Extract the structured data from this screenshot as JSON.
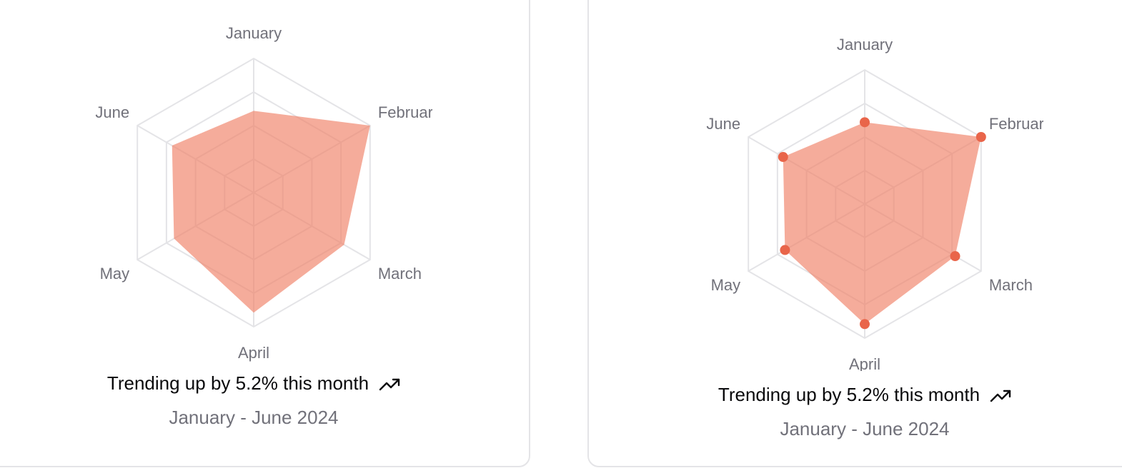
{
  "colors": {
    "fill": "#ef7f65",
    "dot": "#e9654a",
    "grid": "#e4e4e7",
    "label": "#71717a",
    "text": "#09090b"
  },
  "chart_data": [
    {
      "type": "radar",
      "categories": [
        "January",
        "February",
        "March",
        "April",
        "May",
        "June"
      ],
      "values": [
        186,
        305,
        237,
        273,
        209,
        214
      ],
      "rmax": 305,
      "grid_rings": 4,
      "dots": false,
      "footer": {
        "trend_text": "Trending up by 5.2% this month",
        "trend_icon": "trending-up-icon",
        "period": "January - June 2024"
      }
    },
    {
      "type": "radar",
      "categories": [
        "January",
        "February",
        "March",
        "April",
        "May",
        "June"
      ],
      "values": [
        186,
        305,
        237,
        273,
        209,
        214
      ],
      "rmax": 305,
      "grid_rings": 4,
      "dots": true,
      "footer": {
        "trend_text": "Trending up by 5.2% this month",
        "trend_icon": "trending-up-icon",
        "period": "January - June 2024"
      }
    }
  ]
}
